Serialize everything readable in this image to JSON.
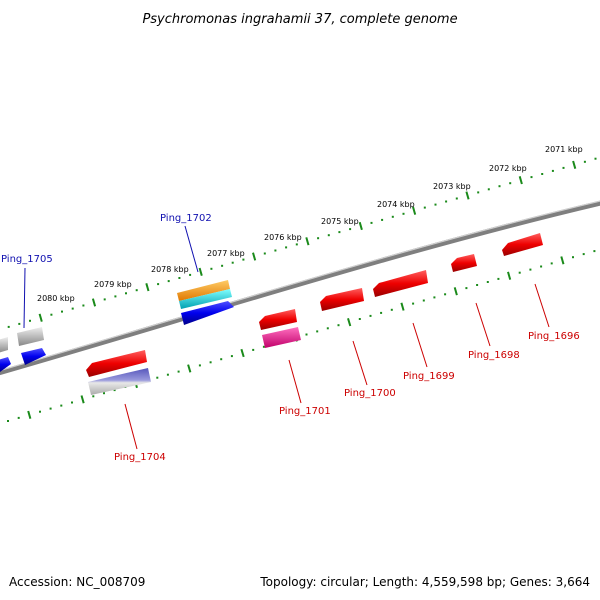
{
  "title": "Psychromonas ingrahamii 37, complete genome",
  "footer": {
    "accession": "Accession: NC_008709",
    "topology": "Topology: circular; Length: 4,559,598 bp; Genes: 3,664"
  },
  "colors": {
    "backbone": "#7f7f7f",
    "tick": "#1a8a1a",
    "forward_label": "#1010b0",
    "reverse_label": "#cc0000",
    "red_gene": "#ee0000",
    "blue_gene": "#0000ee",
    "orange_gene": "#ff9900",
    "cyan_gene": "#00cccc",
    "magenta_gene": "#ee1199",
    "purple_gene": "#7777cc",
    "gray_gene": "#bbbbbb"
  },
  "scale": {
    "ticks": [
      {
        "kbp": 2071,
        "label": "2071 kbp"
      },
      {
        "kbp": 2072,
        "label": "2072 kbp"
      },
      {
        "kbp": 2073,
        "label": "2073 kbp"
      },
      {
        "kbp": 2074,
        "label": "2074 kbp"
      },
      {
        "kbp": 2075,
        "label": "2075 kbp"
      },
      {
        "kbp": 2076,
        "label": "2076 kbp"
      },
      {
        "kbp": 2077,
        "label": "2077 kbp"
      },
      {
        "kbp": 2078,
        "label": "2078 kbp"
      },
      {
        "kbp": 2079,
        "label": "2079 kbp"
      },
      {
        "kbp": 2080,
        "label": "2080 kbp"
      }
    ]
  },
  "gene_labels": [
    {
      "name": "Ping_1705",
      "strand": "forward"
    },
    {
      "name": "Ping_1702",
      "strand": "forward"
    },
    {
      "name": "Ping_1704",
      "strand": "reverse"
    },
    {
      "name": "Ping_1701",
      "strand": "reverse"
    },
    {
      "name": "Ping_1700",
      "strand": "reverse"
    },
    {
      "name": "Ping_1699",
      "strand": "reverse"
    },
    {
      "name": "Ping_1698",
      "strand": "reverse"
    },
    {
      "name": "Ping_1696",
      "strand": "reverse"
    }
  ]
}
